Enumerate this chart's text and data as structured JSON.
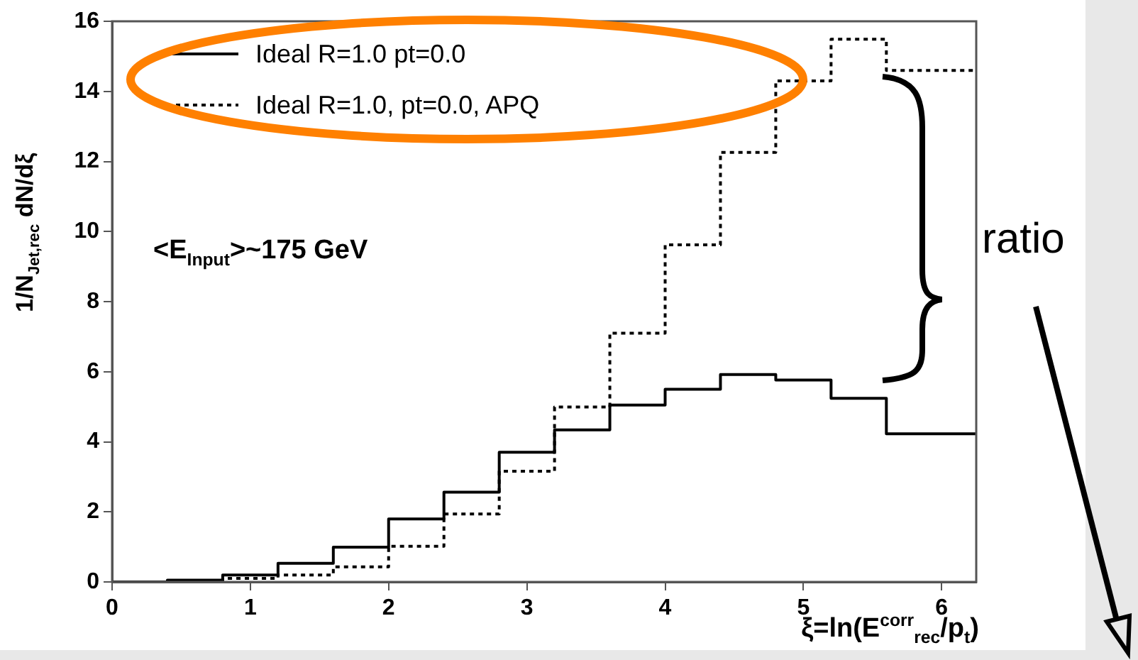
{
  "chart_data": {
    "type": "histogram",
    "xlabel": "ξ=ln(E$^{corr}$$_{rec}$/p$_{t}$)",
    "ylabel": "1/N$_{Jet,rec}$ dN/dξ",
    "bins": [
      0,
      0.4,
      0.8,
      1.2,
      1.6,
      2.0,
      2.4,
      2.8,
      3.2,
      3.6,
      4.0,
      4.4,
      4.8,
      5.2,
      5.6,
      6.25
    ],
    "series": [
      {
        "name": "Ideal R=1.0 pt=0.0",
        "color": "#000000",
        "line_style": "solid",
        "values": [
          0,
          0.05,
          0.2,
          0.53,
          0.99,
          1.8,
          2.56,
          3.7,
          4.34,
          5.05,
          5.5,
          5.92,
          5.76,
          5.24,
          4.23
        ]
      },
      {
        "name": "Ideal R=1.0, pt=0.0, APQ",
        "color": "#000000",
        "line_style": "dotted",
        "values": [
          0,
          0.02,
          0.1,
          0.2,
          0.43,
          1.02,
          1.94,
          3.16,
          4.99,
          7.1,
          9.62,
          12.26,
          14.3,
          15.49,
          14.6
        ]
      }
    ],
    "xlim": [
      0,
      6.25
    ],
    "xticks": [
      0,
      1,
      2,
      3,
      4,
      5,
      6
    ],
    "ylim": [
      0,
      16
    ],
    "yticks": [
      0,
      2,
      4,
      6,
      8,
      10,
      12,
      14,
      16
    ],
    "grid": false,
    "legend": "top left",
    "annotations": [
      "<E$_{Input}$>~175 GeV",
      "ratio"
    ]
  }
}
